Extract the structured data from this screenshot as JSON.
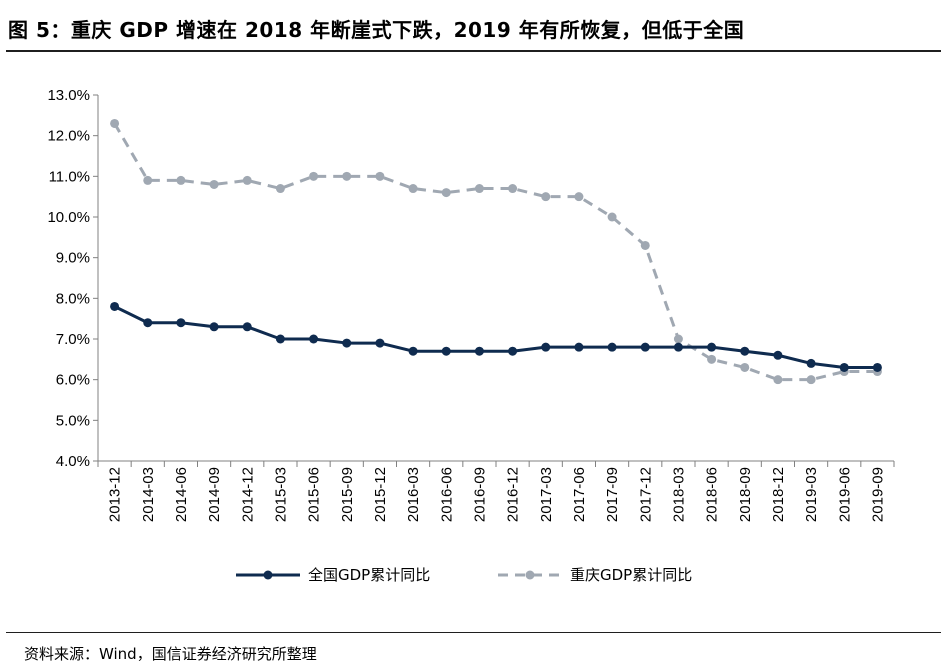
{
  "header": {
    "title": "图 5：重庆 GDP 增速在 2018 年断崖式下跌，2019 年有所恢复，但低于全国"
  },
  "footer": {
    "source": "资料来源：Wind，国信证券经济研究所整理"
  },
  "chart_data": {
    "type": "line",
    "categories": [
      "2013-12",
      "2014-03",
      "2014-06",
      "2014-09",
      "2014-12",
      "2015-03",
      "2015-06",
      "2015-09",
      "2015-12",
      "2016-03",
      "2016-06",
      "2016-09",
      "2016-12",
      "2017-03",
      "2017-06",
      "2017-09",
      "2017-12",
      "2018-03",
      "2018-06",
      "2018-09",
      "2018-12",
      "2019-03",
      "2019-06",
      "2019-09"
    ],
    "series": [
      {
        "name": "全国GDP累计同比",
        "color": "#0f2b4f",
        "line_style": "solid",
        "values": [
          7.8,
          7.4,
          7.4,
          7.3,
          7.3,
          7.0,
          7.0,
          6.9,
          6.9,
          6.7,
          6.7,
          6.7,
          6.7,
          6.8,
          6.8,
          6.8,
          6.8,
          6.8,
          6.8,
          6.7,
          6.6,
          6.4,
          6.3,
          6.3
        ]
      },
      {
        "name": "重庆GDP累计同比",
        "color": "#a0a8b2",
        "line_style": "dashed",
        "values": [
          12.3,
          10.9,
          10.9,
          10.8,
          10.9,
          10.7,
          11.0,
          11.0,
          11.0,
          10.7,
          10.6,
          10.7,
          10.7,
          10.5,
          10.5,
          10.0,
          9.3,
          7.0,
          6.5,
          6.3,
          6.0,
          6.0,
          6.2,
          6.2
        ]
      }
    ],
    "ylim": [
      4.0,
      13.0
    ],
    "yticks": [
      "4.0%",
      "5.0%",
      "6.0%",
      "7.0%",
      "8.0%",
      "9.0%",
      "10.0%",
      "11.0%",
      "12.0%",
      "13.0%"
    ],
    "grid": false,
    "legend_position": "bottom",
    "title": "",
    "xlabel": "",
    "ylabel": ""
  }
}
